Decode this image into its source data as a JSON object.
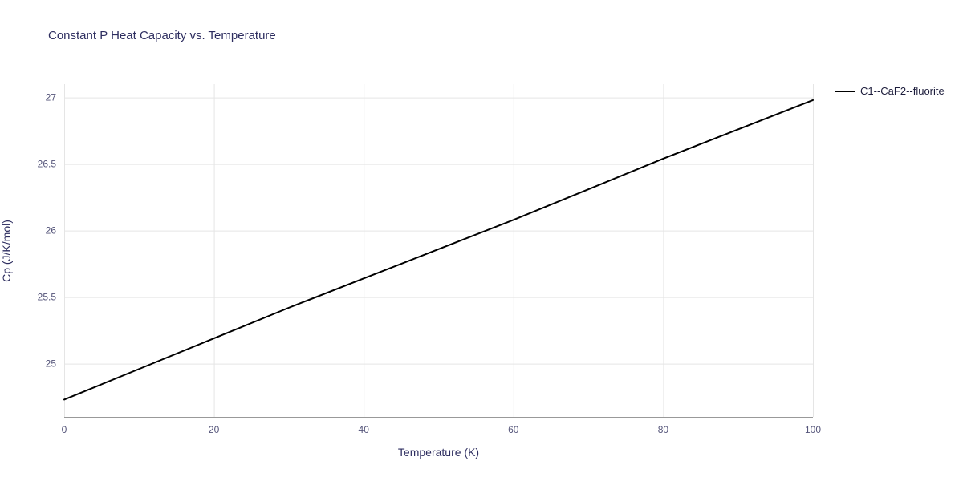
{
  "figure": {
    "title": "Constant P Heat Capacity vs. Temperature"
  },
  "colors": {
    "title_text": "#2e2e60",
    "tick_text": "#55557a",
    "axis_label_text": "#2e2e60",
    "legend_text": "#1d1d3c",
    "grid_line": "#e5e5e5",
    "axis_line": "#999999",
    "series_line": "#000000",
    "background": "#ffffff"
  },
  "chart_data": {
    "type": "line",
    "title": "Constant P Heat Capacity vs. Temperature",
    "xlabel": "Temperature (K)",
    "ylabel": "Cp (J/K/mol)",
    "xlim": [
      0,
      100
    ],
    "ylim": [
      24.6,
      27.1
    ],
    "x_ticks": [
      0,
      20,
      40,
      60,
      80,
      100
    ],
    "y_ticks": [
      25,
      25.5,
      26,
      26.5,
      27
    ],
    "grid": true,
    "legend_position": "top-right-outside",
    "series": [
      {
        "name": "C1--CaF2--fluorite",
        "color": "#000000",
        "x": [
          0,
          10,
          20,
          30,
          40,
          50,
          60,
          70,
          80,
          90,
          100
        ],
        "y": [
          24.73,
          24.96,
          25.19,
          25.42,
          25.64,
          25.86,
          26.08,
          26.31,
          26.54,
          26.76,
          26.98
        ]
      }
    ]
  },
  "legend": {
    "entries": [
      {
        "label": "C1--CaF2--fluorite",
        "color": "#000000"
      }
    ]
  }
}
